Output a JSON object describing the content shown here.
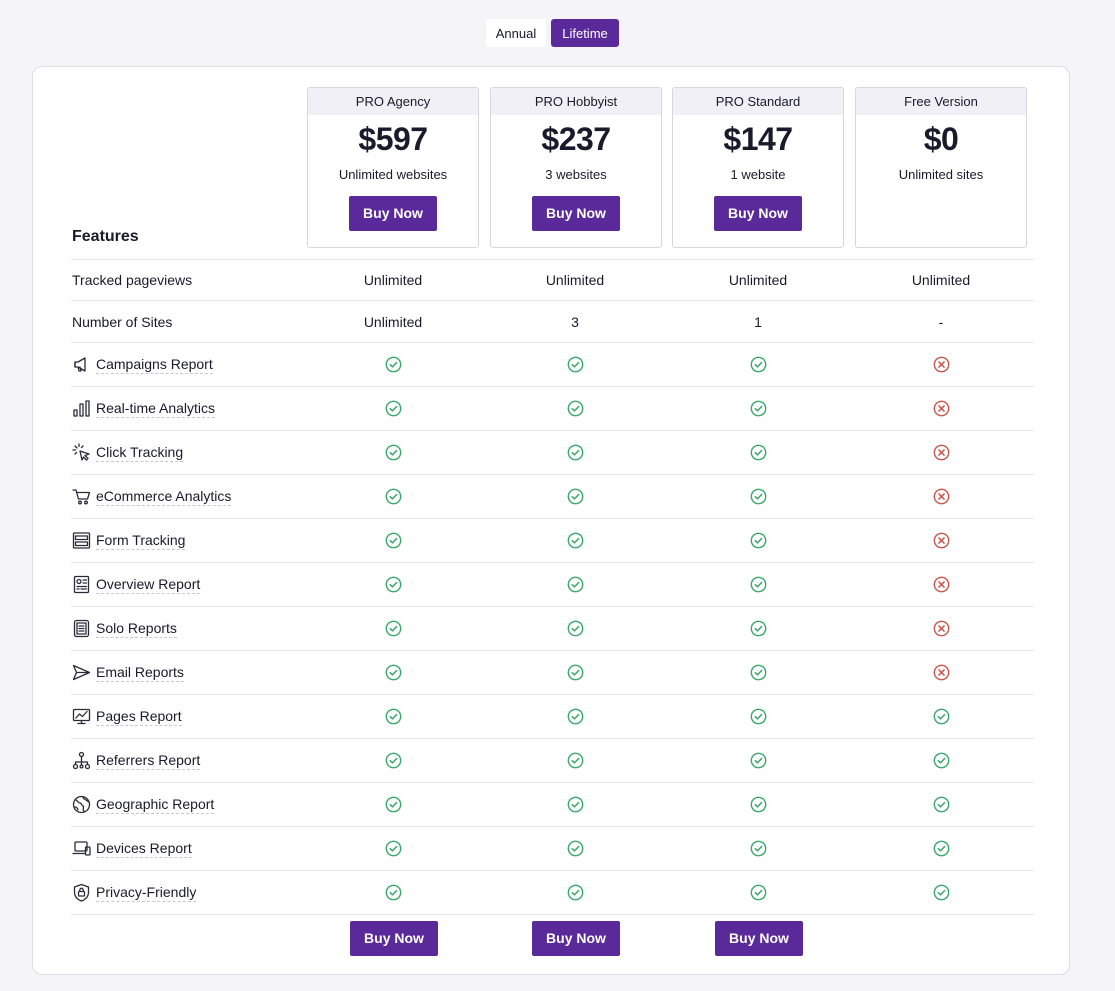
{
  "billing_toggle": {
    "annual_label": "Annual",
    "lifetime_label": "Lifetime",
    "selected": "Lifetime"
  },
  "features_heading": "Features",
  "plans": [
    {
      "name": "PRO Agency",
      "price": "$597",
      "sites": "Unlimited websites",
      "buy_label": "Buy Now"
    },
    {
      "name": "PRO Hobbyist",
      "price": "$237",
      "sites": "3 websites",
      "buy_label": "Buy Now"
    },
    {
      "name": "PRO Standard",
      "price": "$147",
      "sites": "1 website",
      "buy_label": "Buy Now"
    },
    {
      "name": "Free Version",
      "price": "$0",
      "sites": "Unlimited sites",
      "buy_label": ""
    }
  ],
  "text_rows": [
    {
      "label": "Tracked pageviews",
      "values": [
        "Unlimited",
        "Unlimited",
        "Unlimited",
        "Unlimited"
      ]
    },
    {
      "label": "Number of Sites",
      "values": [
        "Unlimited",
        "3",
        "1",
        "-"
      ]
    }
  ],
  "feature_rows": [
    {
      "label": "Campaigns Report",
      "icon": "megaphone-icon",
      "included": [
        true,
        true,
        true,
        false
      ]
    },
    {
      "label": "Real-time Analytics",
      "icon": "bar-chart-icon",
      "included": [
        true,
        true,
        true,
        false
      ]
    },
    {
      "label": "Click Tracking",
      "icon": "cursor-click-icon",
      "included": [
        true,
        true,
        true,
        false
      ]
    },
    {
      "label": "eCommerce Analytics",
      "icon": "cart-icon",
      "included": [
        true,
        true,
        true,
        false
      ]
    },
    {
      "label": "Form Tracking",
      "icon": "form-icon",
      "included": [
        true,
        true,
        true,
        false
      ]
    },
    {
      "label": "Overview Report",
      "icon": "overview-report-icon",
      "included": [
        true,
        true,
        true,
        false
      ]
    },
    {
      "label": "Solo Reports",
      "icon": "document-list-icon",
      "included": [
        true,
        true,
        true,
        false
      ]
    },
    {
      "label": "Email Reports",
      "icon": "send-icon",
      "included": [
        true,
        true,
        true,
        false
      ]
    },
    {
      "label": "Pages Report",
      "icon": "line-chart-monitor-icon",
      "included": [
        true,
        true,
        true,
        true
      ]
    },
    {
      "label": "Referrers Report",
      "icon": "network-icon",
      "included": [
        true,
        true,
        true,
        true
      ]
    },
    {
      "label": "Geographic Report",
      "icon": "globe-icon",
      "included": [
        true,
        true,
        true,
        true
      ]
    },
    {
      "label": "Devices Report",
      "icon": "devices-icon",
      "included": [
        true,
        true,
        true,
        true
      ]
    },
    {
      "label": "Privacy-Friendly",
      "icon": "shield-lock-icon",
      "included": [
        true,
        true,
        true,
        true
      ]
    }
  ],
  "bottom_buttons": [
    "Buy Now",
    "Buy Now",
    "Buy Now"
  ],
  "colors": {
    "accent": "#5b2a9a",
    "check": "#3aa86b",
    "cross": "#c9574d",
    "background": "#f5f4f9"
  }
}
